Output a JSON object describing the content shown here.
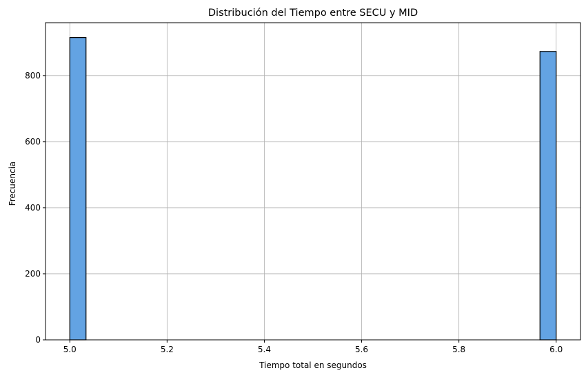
{
  "chart_data": {
    "type": "bar",
    "title": "Distribución del Tiempo entre SECU y MID",
    "xlabel": "Tiempo total en segundos",
    "ylabel": "Frecuencia",
    "xlim": [
      4.95,
      6.05
    ],
    "ylim": [
      0,
      960
    ],
    "x_ticks": [
      5.0,
      5.2,
      5.4,
      5.6,
      5.8,
      6.0
    ],
    "x_tick_labels": [
      "5.0",
      "5.2",
      "5.4",
      "5.6",
      "5.8",
      "6.0"
    ],
    "y_ticks": [
      0,
      200,
      400,
      600,
      800
    ],
    "y_tick_labels": [
      "0",
      "200",
      "400",
      "600",
      "800"
    ],
    "grid": true,
    "bar_color": "#63a3e3",
    "edge_color": "#000000",
    "bins": [
      {
        "x0": 5.0,
        "x1": 5.0333,
        "value": 915
      },
      {
        "x0": 5.9667,
        "x1": 6.0,
        "value": 873
      }
    ]
  }
}
